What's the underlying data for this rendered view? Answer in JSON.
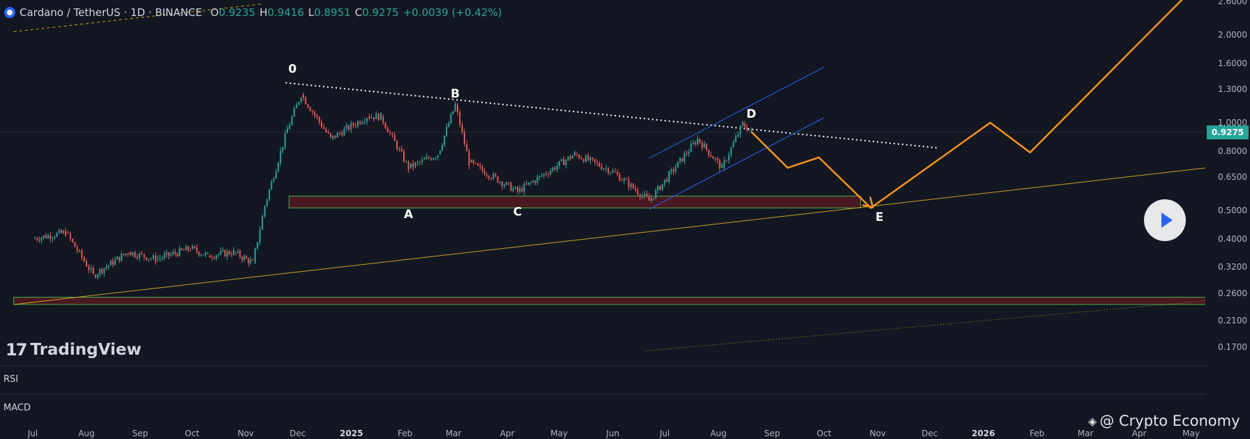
{
  "header": {
    "symbol": "Cardano / TetherUS · 1D · BINANCE",
    "o_label": "O",
    "o_value": "0.9235",
    "h_label": "H",
    "h_value": "0.9416",
    "l_label": "L",
    "l_value": "0.8951",
    "c_label": "C",
    "c_value": "0.9275",
    "change": "+0.0039 (+0.42%)"
  },
  "branding": {
    "name": "TradingView",
    "mark": "17"
  },
  "panes": {
    "rsi": "RSI",
    "macd": "MACD"
  },
  "watermark": {
    "text": "@ Crypto Economy"
  },
  "colors": {
    "up": "#26a69a",
    "down": "#ef5350",
    "projection": "#f7931a",
    "channel": "#2962ff",
    "support": "#c9a227"
  },
  "chart_data": {
    "type": "line",
    "title": "",
    "price_axis": {
      "scale": "log",
      "ticks": [
        "2.6000",
        "2.0000",
        "1.6000",
        "1.3000",
        "1.0000",
        "0.8000",
        "0.6500",
        "0.5000",
        "0.4000",
        "0.3200",
        "0.2600",
        "0.2100",
        "0.1700"
      ],
      "last_price": "0.9275"
    },
    "time_axis": {
      "ticks": [
        {
          "label": "Jul",
          "bold": false
        },
        {
          "label": "Aug",
          "bold": false
        },
        {
          "label": "Sep",
          "bold": false
        },
        {
          "label": "Oct",
          "bold": false
        },
        {
          "label": "Nov",
          "bold": false
        },
        {
          "label": "Dec",
          "bold": false
        },
        {
          "label": "2025",
          "bold": true
        },
        {
          "label": "Feb",
          "bold": false
        },
        {
          "label": "Mar",
          "bold": false
        },
        {
          "label": "Apr",
          "bold": false
        },
        {
          "label": "May",
          "bold": false
        },
        {
          "label": "Jun",
          "bold": false
        },
        {
          "label": "Jul",
          "bold": false
        },
        {
          "label": "Aug",
          "bold": false
        },
        {
          "label": "Sep",
          "bold": false
        },
        {
          "label": "Oct",
          "bold": false
        },
        {
          "label": "Nov",
          "bold": false
        },
        {
          "label": "Dec",
          "bold": false
        },
        {
          "label": "2026",
          "bold": true
        },
        {
          "label": "Feb",
          "bold": false
        },
        {
          "label": "Mar",
          "bold": false
        },
        {
          "label": "Apr",
          "bold": false
        },
        {
          "label": "May",
          "bold": false
        }
      ]
    },
    "price_series": [
      {
        "date": "2024-07-01",
        "value": 0.4
      },
      {
        "date": "2024-07-20",
        "value": 0.42
      },
      {
        "date": "2024-08-05",
        "value": 0.3
      },
      {
        "date": "2024-08-25",
        "value": 0.36
      },
      {
        "date": "2024-09-10",
        "value": 0.34
      },
      {
        "date": "2024-09-30",
        "value": 0.37
      },
      {
        "date": "2024-10-10",
        "value": 0.35
      },
      {
        "date": "2024-10-25",
        "value": 0.36
      },
      {
        "date": "2024-11-05",
        "value": 0.33
      },
      {
        "date": "2024-11-12",
        "value": 0.52
      },
      {
        "date": "2024-11-25",
        "value": 0.95
      },
      {
        "date": "2024-12-03",
        "value": 1.25
      },
      {
        "date": "2024-12-20",
        "value": 0.88
      },
      {
        "date": "2025-01-10",
        "value": 1.05
      },
      {
        "date": "2025-01-18",
        "value": 1.05
      },
      {
        "date": "2025-02-03",
        "value": 0.7
      },
      {
        "date": "2025-02-20",
        "value": 0.78
      },
      {
        "date": "2025-03-02",
        "value": 1.15
      },
      {
        "date": "2025-03-10",
        "value": 0.73
      },
      {
        "date": "2025-04-07",
        "value": 0.58
      },
      {
        "date": "2025-05-10",
        "value": 0.78
      },
      {
        "date": "2025-06-01",
        "value": 0.68
      },
      {
        "date": "2025-06-22",
        "value": 0.54
      },
      {
        "date": "2025-07-20",
        "value": 0.88
      },
      {
        "date": "2025-08-03",
        "value": 0.7
      },
      {
        "date": "2025-08-15",
        "value": 0.99
      },
      {
        "date": "2025-08-20",
        "value": 0.9275
      }
    ],
    "projection": [
      {
        "date": "2025-08-20",
        "value": 0.93
      },
      {
        "date": "2025-09-10",
        "value": 0.7
      },
      {
        "date": "2025-09-28",
        "value": 0.76
      },
      {
        "date": "2025-10-28",
        "value": 0.51
      },
      {
        "date": "2026-01-05",
        "value": 1.0
      },
      {
        "date": "2026-01-28",
        "value": 0.79
      },
      {
        "date": "2026-04-30",
        "value": 2.8
      }
    ],
    "wave_labels": [
      {
        "label": "0",
        "date": "2024-11-28",
        "value": 1.48
      },
      {
        "label": "A",
        "date": "2025-02-03",
        "value": 0.47
      },
      {
        "label": "B",
        "date": "2025-03-02",
        "value": 1.22
      },
      {
        "label": "C",
        "date": "2025-04-07",
        "value": 0.48
      },
      {
        "label": "D",
        "date": "2025-08-20",
        "value": 1.04
      },
      {
        "label": "E",
        "date": "2025-11-02",
        "value": 0.46
      }
    ],
    "trendlines": [
      {
        "kind": "resistance",
        "style": "dotted",
        "color": "#ffffff",
        "start": {
          "date": "2024-11-24",
          "value": 1.37
        },
        "end": {
          "date": "2025-12-05",
          "value": 0.82
        }
      },
      {
        "kind": "support",
        "style": "solid",
        "color": "#c9a227",
        "start": {
          "date": "2024-06-20",
          "value": 0.238
        },
        "end": {
          "date": "2026-05-10",
          "value": 0.7
        }
      },
      {
        "kind": "support-dotted",
        "style": "dotted",
        "color": "#c9a227",
        "start": {
          "date": "2025-06-20",
          "value": 0.165
        },
        "end": {
          "date": "2026-05-10",
          "value": 0.245
        }
      },
      {
        "kind": "upper-dashed",
        "style": "dashed",
        "color": "#c9a227",
        "start": {
          "date": "2024-06-20",
          "value": 2.05
        },
        "end": {
          "date": "2024-11-10",
          "value": 2.55
        }
      },
      {
        "kind": "channel-upper",
        "style": "solid",
        "color": "#2962ff",
        "start": {
          "date": "2025-06-22",
          "value": 0.755
        },
        "end": {
          "date": "2025-10-01",
          "value": 1.55
        }
      },
      {
        "kind": "channel-lower",
        "style": "solid",
        "color": "#2962ff",
        "start": {
          "date": "2025-06-22",
          "value": 0.505
        },
        "end": {
          "date": "2025-10-01",
          "value": 1.04
        }
      }
    ],
    "zones": [
      {
        "start": "2024-11-26",
        "end": "2025-10-22",
        "low": 0.51,
        "high": 0.56
      },
      {
        "start": "2024-06-20",
        "end": "2026-05-10",
        "low": 0.238,
        "high": 0.252
      }
    ],
    "grid": false,
    "legend": "none"
  }
}
